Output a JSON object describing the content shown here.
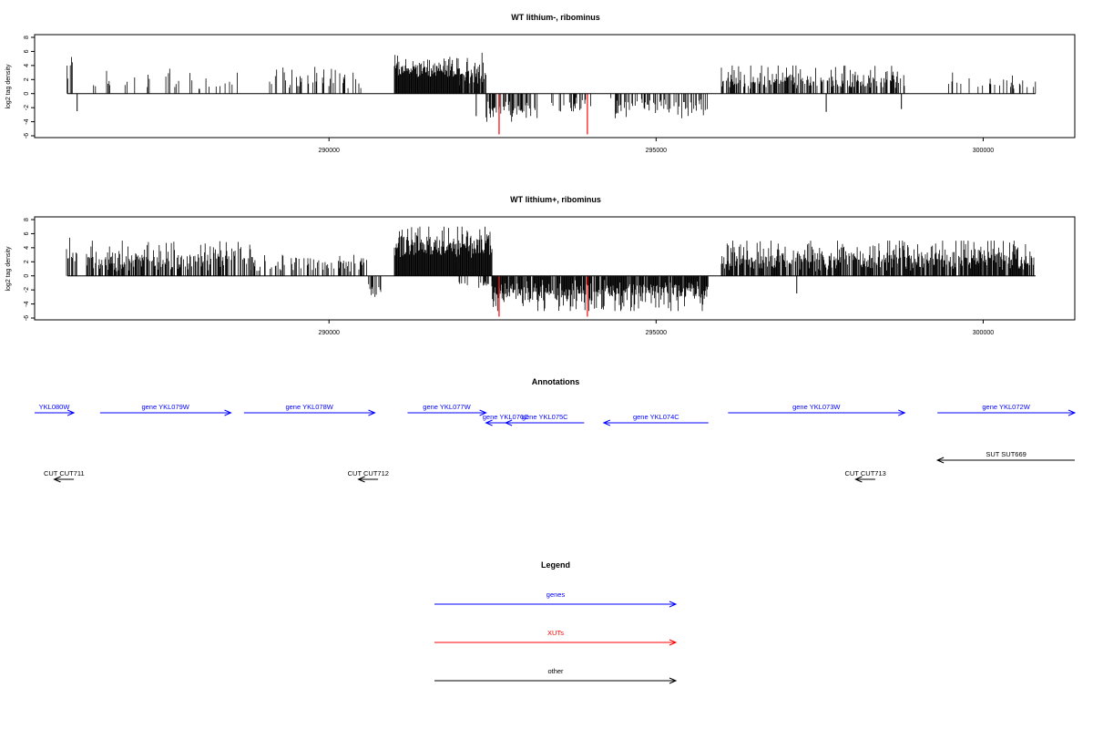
{
  "colors": {
    "genes": "#0000ff",
    "xuts": "#ff0000",
    "other": "#000000",
    "signal": "#000000",
    "highlight": "#ff0000"
  },
  "chart_data": [
    {
      "type": "bar",
      "title": "WT lithium-, ribominus",
      "ylabel": "log2 tag density",
      "xlim": [
        285500,
        301400
      ],
      "ylim": [
        -6,
        8
      ],
      "yticks": [
        "8",
        "6",
        "4",
        "2",
        "0",
        "-2",
        "-4",
        "-6"
      ],
      "xticks": [
        {
          "value": 290000,
          "label": "290000"
        },
        {
          "value": 295000,
          "label": "295000"
        },
        {
          "value": 300000,
          "label": "300000"
        }
      ],
      "data_range": [
        286000,
        300800
      ],
      "regions": [
        {
          "start": 286000,
          "end": 286100,
          "strand": 1,
          "density": 0.4,
          "min": 1.5,
          "max": 5.5
        },
        {
          "start": 286100,
          "end": 286600,
          "strand": 1,
          "density": 0.05,
          "min": 0.5,
          "max": 2
        },
        {
          "start": 286600,
          "end": 287800,
          "strand": 1,
          "density": 0.15,
          "min": 0.5,
          "max": 4
        },
        {
          "start": 287800,
          "end": 288700,
          "strand": 1,
          "density": 0.1,
          "min": 0.5,
          "max": 3.5
        },
        {
          "start": 289100,
          "end": 290500,
          "strand": 1,
          "density": 0.25,
          "min": 0.5,
          "max": 4
        },
        {
          "start": 291000,
          "end": 292000,
          "strand": 1,
          "density": 1,
          "min": 2,
          "max": 5.5
        },
        {
          "start": 292000,
          "end": 292400,
          "strand": 1,
          "density": 0.8,
          "min": 1,
          "max": 6
        },
        {
          "start": 292400,
          "end": 293200,
          "strand": -1,
          "density": 0.5,
          "min": 1,
          "max": 4
        },
        {
          "start": 293400,
          "end": 294000,
          "strand": -1,
          "density": 0.3,
          "min": 0.5,
          "max": 3
        },
        {
          "start": 294300,
          "end": 295800,
          "strand": -1,
          "density": 0.4,
          "min": 0.5,
          "max": 3.5
        },
        {
          "start": 296000,
          "end": 298800,
          "strand": 1,
          "density": 0.6,
          "min": 0.5,
          "max": 4
        },
        {
          "start": 299300,
          "end": 300800,
          "strand": 1,
          "density": 0.15,
          "min": 0.5,
          "max": 3
        }
      ],
      "spikes": [
        {
          "x": 286150,
          "y": -2.5
        },
        {
          "x": 292250,
          "y": -3.2
        },
        {
          "x": 297600,
          "y": -2.6
        },
        {
          "x": 298750,
          "y": -2.2
        }
      ],
      "highlights": [
        {
          "x": 292600,
          "y": -5.8
        },
        {
          "x": 293950,
          "y": -5.8
        }
      ]
    },
    {
      "type": "bar",
      "title": "WT lithium+, ribominus",
      "ylabel": "log2 tag density",
      "xlim": [
        285500,
        301400
      ],
      "ylim": [
        -6,
        8
      ],
      "yticks": [
        "8",
        "6",
        "4",
        "2",
        "0",
        "-2",
        "-4",
        "-6"
      ],
      "xticks": [
        {
          "value": 290000,
          "label": "290000"
        },
        {
          "value": 295000,
          "label": "295000"
        },
        {
          "value": 300000,
          "label": "300000"
        }
      ],
      "data_range": [
        286000,
        300800
      ],
      "regions": [
        {
          "start": 286000,
          "end": 286150,
          "strand": 1,
          "density": 0.5,
          "min": 1.5,
          "max": 5.5
        },
        {
          "start": 286300,
          "end": 288800,
          "strand": 1,
          "density": 0.6,
          "min": 0.5,
          "max": 5
        },
        {
          "start": 288800,
          "end": 290600,
          "strand": 1,
          "density": 0.4,
          "min": 0.5,
          "max": 3
        },
        {
          "start": 290600,
          "end": 290800,
          "strand": -1,
          "density": 0.3,
          "min": 1,
          "max": 3
        },
        {
          "start": 291000,
          "end": 292500,
          "strand": 1,
          "density": 1,
          "min": 2.5,
          "max": 7
        },
        {
          "start": 292000,
          "end": 292500,
          "strand": -1,
          "density": 0.3,
          "min": 0.5,
          "max": 2
        },
        {
          "start": 292500,
          "end": 295800,
          "strand": -1,
          "density": 0.9,
          "min": 0.5,
          "max": 5
        },
        {
          "start": 296000,
          "end": 300800,
          "strand": 1,
          "density": 0.8,
          "min": 0.5,
          "max": 5
        }
      ],
      "spikes": [
        {
          "x": 297150,
          "y": -2.5
        },
        {
          "x": 294200,
          "y": -1.8
        }
      ],
      "highlights": [
        {
          "x": 292600,
          "y": -5.8
        },
        {
          "x": 293950,
          "y": -5.8
        }
      ]
    }
  ],
  "annotations": {
    "title": "Annotations",
    "genes": [
      {
        "label": "YKL080W",
        "start": 285500,
        "end": 286100,
        "strand": 1,
        "row": 0
      },
      {
        "label": "gene YKL079W",
        "start": 286500,
        "end": 288500,
        "strand": 1,
        "row": 0
      },
      {
        "label": "gene YKL078W",
        "start": 288700,
        "end": 290700,
        "strand": 1,
        "row": 0
      },
      {
        "label": "gene YKL077W",
        "start": 291200,
        "end": 292400,
        "strand": 1,
        "row": 0
      },
      {
        "label": "gene YKL076C",
        "start": 292400,
        "end": 293000,
        "strand": -1,
        "row": 1
      },
      {
        "label": "gene YKL075C",
        "start": 292700,
        "end": 293900,
        "strand": -1,
        "row": 1
      },
      {
        "label": "gene YKL074C",
        "start": 294200,
        "end": 295800,
        "strand": -1,
        "row": 1
      },
      {
        "label": "gene YKL073W",
        "start": 296100,
        "end": 298800,
        "strand": 1,
        "row": 0
      },
      {
        "label": "gene YKL072W",
        "start": 299300,
        "end": 301400,
        "strand": 1,
        "row": 0
      }
    ],
    "other": [
      {
        "label": "CUT CUT711",
        "start": 285800,
        "end": 286100,
        "strand": -1,
        "row": 3
      },
      {
        "label": "CUT CUT712",
        "start": 290450,
        "end": 290750,
        "strand": -1,
        "row": 3
      },
      {
        "label": "CUT CUT713",
        "start": 298050,
        "end": 298350,
        "strand": -1,
        "row": 3
      },
      {
        "label": "SUT SUT669",
        "start": 299300,
        "end": 301400,
        "strand": -1,
        "row": 2
      }
    ]
  },
  "legend": {
    "title": "Legend",
    "items": [
      {
        "label": "genes",
        "color": "#0000ff"
      },
      {
        "label": "XUTs",
        "color": "#ff0000"
      },
      {
        "label": "other",
        "color": "#000000"
      }
    ]
  }
}
